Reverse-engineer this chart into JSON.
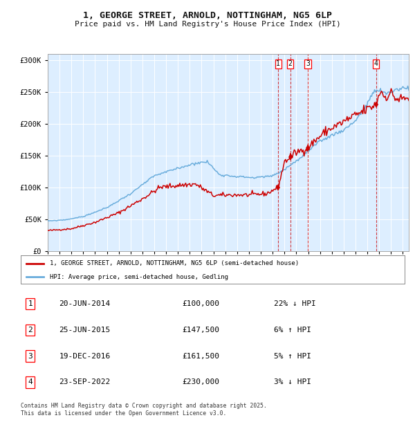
{
  "title": "1, GEORGE STREET, ARNOLD, NOTTINGHAM, NG5 6LP",
  "subtitle": "Price paid vs. HM Land Registry's House Price Index (HPI)",
  "legend_line1": "1, GEORGE STREET, ARNOLD, NOTTINGHAM, NG5 6LP (semi-detached house)",
  "legend_line2": "HPI: Average price, semi-detached house, Gedling",
  "footer1": "Contains HM Land Registry data © Crown copyright and database right 2025.",
  "footer2": "This data is licensed under the Open Government Licence v3.0.",
  "hpi_color": "#6aaddc",
  "price_color": "#cc0000",
  "background_chart": "#ddeeff",
  "background_fig": "#ffffff",
  "grid_color": "#ffffff",
  "transactions": [
    {
      "num": 1,
      "date": "20-JUN-2014",
      "price": 100000,
      "pct": "22%",
      "dir": "↓",
      "year_x": 2014.47
    },
    {
      "num": 2,
      "date": "25-JUN-2015",
      "price": 147500,
      "pct": "6%",
      "dir": "↑",
      "year_x": 2015.48
    },
    {
      "num": 3,
      "date": "19-DEC-2016",
      "price": 161500,
      "pct": "5%",
      "dir": "↑",
      "year_x": 2016.97
    },
    {
      "num": 4,
      "date": "23-SEP-2022",
      "price": 230000,
      "pct": "3%",
      "dir": "↓",
      "year_x": 2022.73
    }
  ],
  "xmin": 1995.0,
  "xmax": 2025.5,
  "ymin": 0,
  "ymax": 310000,
  "yticks": [
    0,
    50000,
    100000,
    150000,
    200000,
    250000,
    300000
  ],
  "ytick_labels": [
    "£0",
    "£50K",
    "£100K",
    "£150K",
    "£200K",
    "£250K",
    "£300K"
  ],
  "price_anchors": [
    [
      1995.0,
      32000
    ],
    [
      1997.0,
      35000
    ],
    [
      1999.0,
      45000
    ],
    [
      2001.0,
      60000
    ],
    [
      2003.0,
      82000
    ],
    [
      2004.5,
      100000
    ],
    [
      2006.0,
      103000
    ],
    [
      2007.5,
      105000
    ],
    [
      2009.0,
      87000
    ],
    [
      2010.5,
      88000
    ],
    [
      2012.0,
      88000
    ],
    [
      2013.5,
      90000
    ],
    [
      2014.47,
      100000
    ],
    [
      2015.0,
      140000
    ],
    [
      2015.48,
      147500
    ],
    [
      2016.0,
      155000
    ],
    [
      2016.97,
      161500
    ],
    [
      2017.5,
      172000
    ],
    [
      2018.5,
      188000
    ],
    [
      2019.5,
      198000
    ],
    [
      2020.5,
      208000
    ],
    [
      2021.5,
      218000
    ],
    [
      2022.73,
      230000
    ],
    [
      2023.1,
      252000
    ],
    [
      2023.5,
      242000
    ],
    [
      2024.0,
      248000
    ],
    [
      2024.5,
      238000
    ],
    [
      2025.5,
      240000
    ]
  ],
  "hpi_anchors": [
    [
      1995.0,
      47000
    ],
    [
      1996.5,
      49000
    ],
    [
      1998.0,
      54000
    ],
    [
      2000.0,
      68000
    ],
    [
      2002.0,
      90000
    ],
    [
      2004.0,
      118000
    ],
    [
      2006.0,
      130000
    ],
    [
      2007.5,
      138000
    ],
    [
      2008.5,
      140000
    ],
    [
      2009.5,
      120000
    ],
    [
      2011.0,
      117000
    ],
    [
      2012.5,
      115000
    ],
    [
      2014.0,
      118000
    ],
    [
      2015.0,
      128000
    ],
    [
      2015.5,
      135000
    ],
    [
      2016.5,
      148000
    ],
    [
      2017.0,
      157000
    ],
    [
      2018.0,
      172000
    ],
    [
      2019.0,
      182000
    ],
    [
      2020.0,
      190000
    ],
    [
      2021.0,
      205000
    ],
    [
      2022.0,
      230000
    ],
    [
      2022.5,
      250000
    ],
    [
      2023.0,
      252000
    ],
    [
      2023.5,
      247000
    ],
    [
      2024.0,
      250000
    ],
    [
      2024.5,
      254000
    ],
    [
      2025.5,
      257000
    ]
  ]
}
